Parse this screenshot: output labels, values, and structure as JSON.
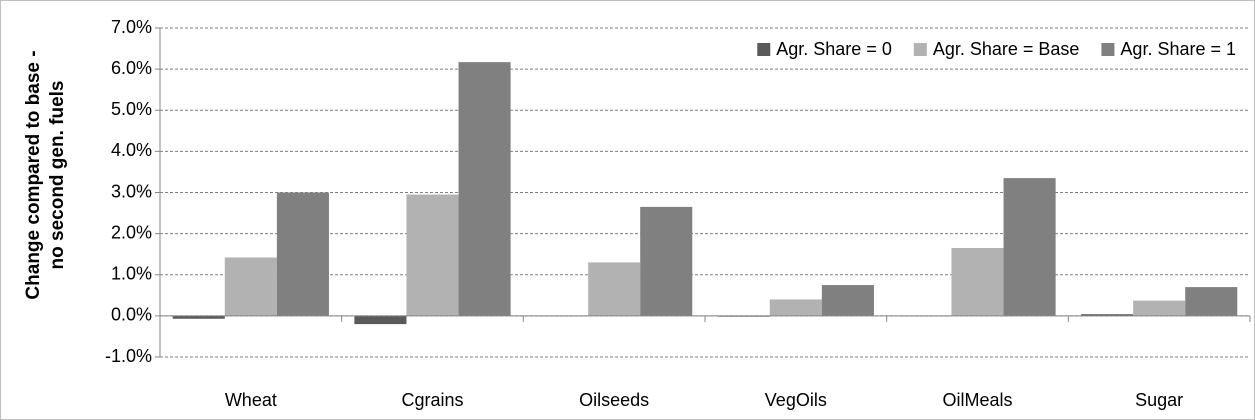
{
  "chart_data": {
    "type": "bar",
    "ylabel": [
      "Change compared to base -",
      "no second gen. fuels"
    ],
    "categories": [
      "Wheat",
      "Cgrains",
      "Oilseeds",
      "VegOils",
      "OilMeals",
      "Sugar"
    ],
    "series": [
      {
        "name": "Agr. Share = 0",
        "color": "#5a5a5a",
        "values": [
          -0.07,
          -0.2,
          -0.01,
          -0.02,
          -0.01,
          0.04
        ]
      },
      {
        "name": "Agr. Share = Base",
        "color": "#b2b2b2",
        "values": [
          1.42,
          2.95,
          1.3,
          0.4,
          1.65,
          0.37
        ]
      },
      {
        "name": "Agr. Share = 1",
        "color": "#808080",
        "values": [
          3.0,
          6.17,
          2.65,
          0.75,
          3.35,
          0.7
        ]
      }
    ],
    "ylim": [
      -1,
      7
    ],
    "yticks": [
      {
        "value": -1,
        "label": "-1.0%"
      },
      {
        "value": 0,
        "label": "0.0%"
      },
      {
        "value": 1,
        "label": "1.0%"
      },
      {
        "value": 2,
        "label": "2.0%"
      },
      {
        "value": 3,
        "label": "3.0%"
      },
      {
        "value": 4,
        "label": "4.0%"
      },
      {
        "value": 5,
        "label": "5.0%"
      },
      {
        "value": 6,
        "label": "6.0%"
      },
      {
        "value": 7,
        "label": "7.0%"
      }
    ],
    "grid": true,
    "legend": "top-right"
  }
}
